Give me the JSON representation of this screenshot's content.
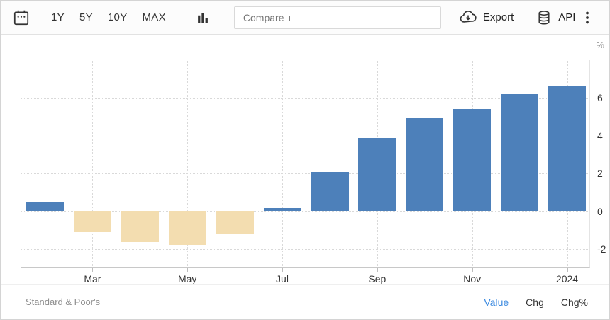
{
  "toolbar": {
    "range_buttons": [
      "1Y",
      "5Y",
      "10Y",
      "MAX"
    ],
    "compare_placeholder": "Compare +",
    "export_label": "Export",
    "api_label": "API"
  },
  "chart_data": {
    "type": "bar",
    "unit": "%",
    "n_bars": 12,
    "values": [
      0.5,
      -1.1,
      -1.6,
      -1.8,
      -1.2,
      0.2,
      2.1,
      3.9,
      4.9,
      5.4,
      6.2,
      6.6
    ],
    "x_tick_labels": [
      "Mar",
      "May",
      "Jul",
      "Sep",
      "Nov",
      "2024"
    ],
    "x_tick_slots": [
      1,
      3,
      5,
      7,
      9,
      11
    ],
    "y_tick_labels": [
      "6",
      "4",
      "2",
      "0",
      "-2"
    ],
    "y_tick_values": [
      6,
      4,
      2,
      0,
      -2
    ],
    "y_grid_values": [
      8,
      6,
      4,
      2,
      0,
      -2
    ],
    "ylim": [
      -3,
      8
    ],
    "grid": true,
    "legend_position": "none",
    "positive_color": "#4d80ba",
    "negative_color": "#f3ddb0"
  },
  "footer": {
    "source": "Standard & Poor's",
    "modes": [
      {
        "label": "Value",
        "active": true
      },
      {
        "label": "Chg",
        "active": false
      },
      {
        "label": "Chg%",
        "active": false
      }
    ]
  }
}
